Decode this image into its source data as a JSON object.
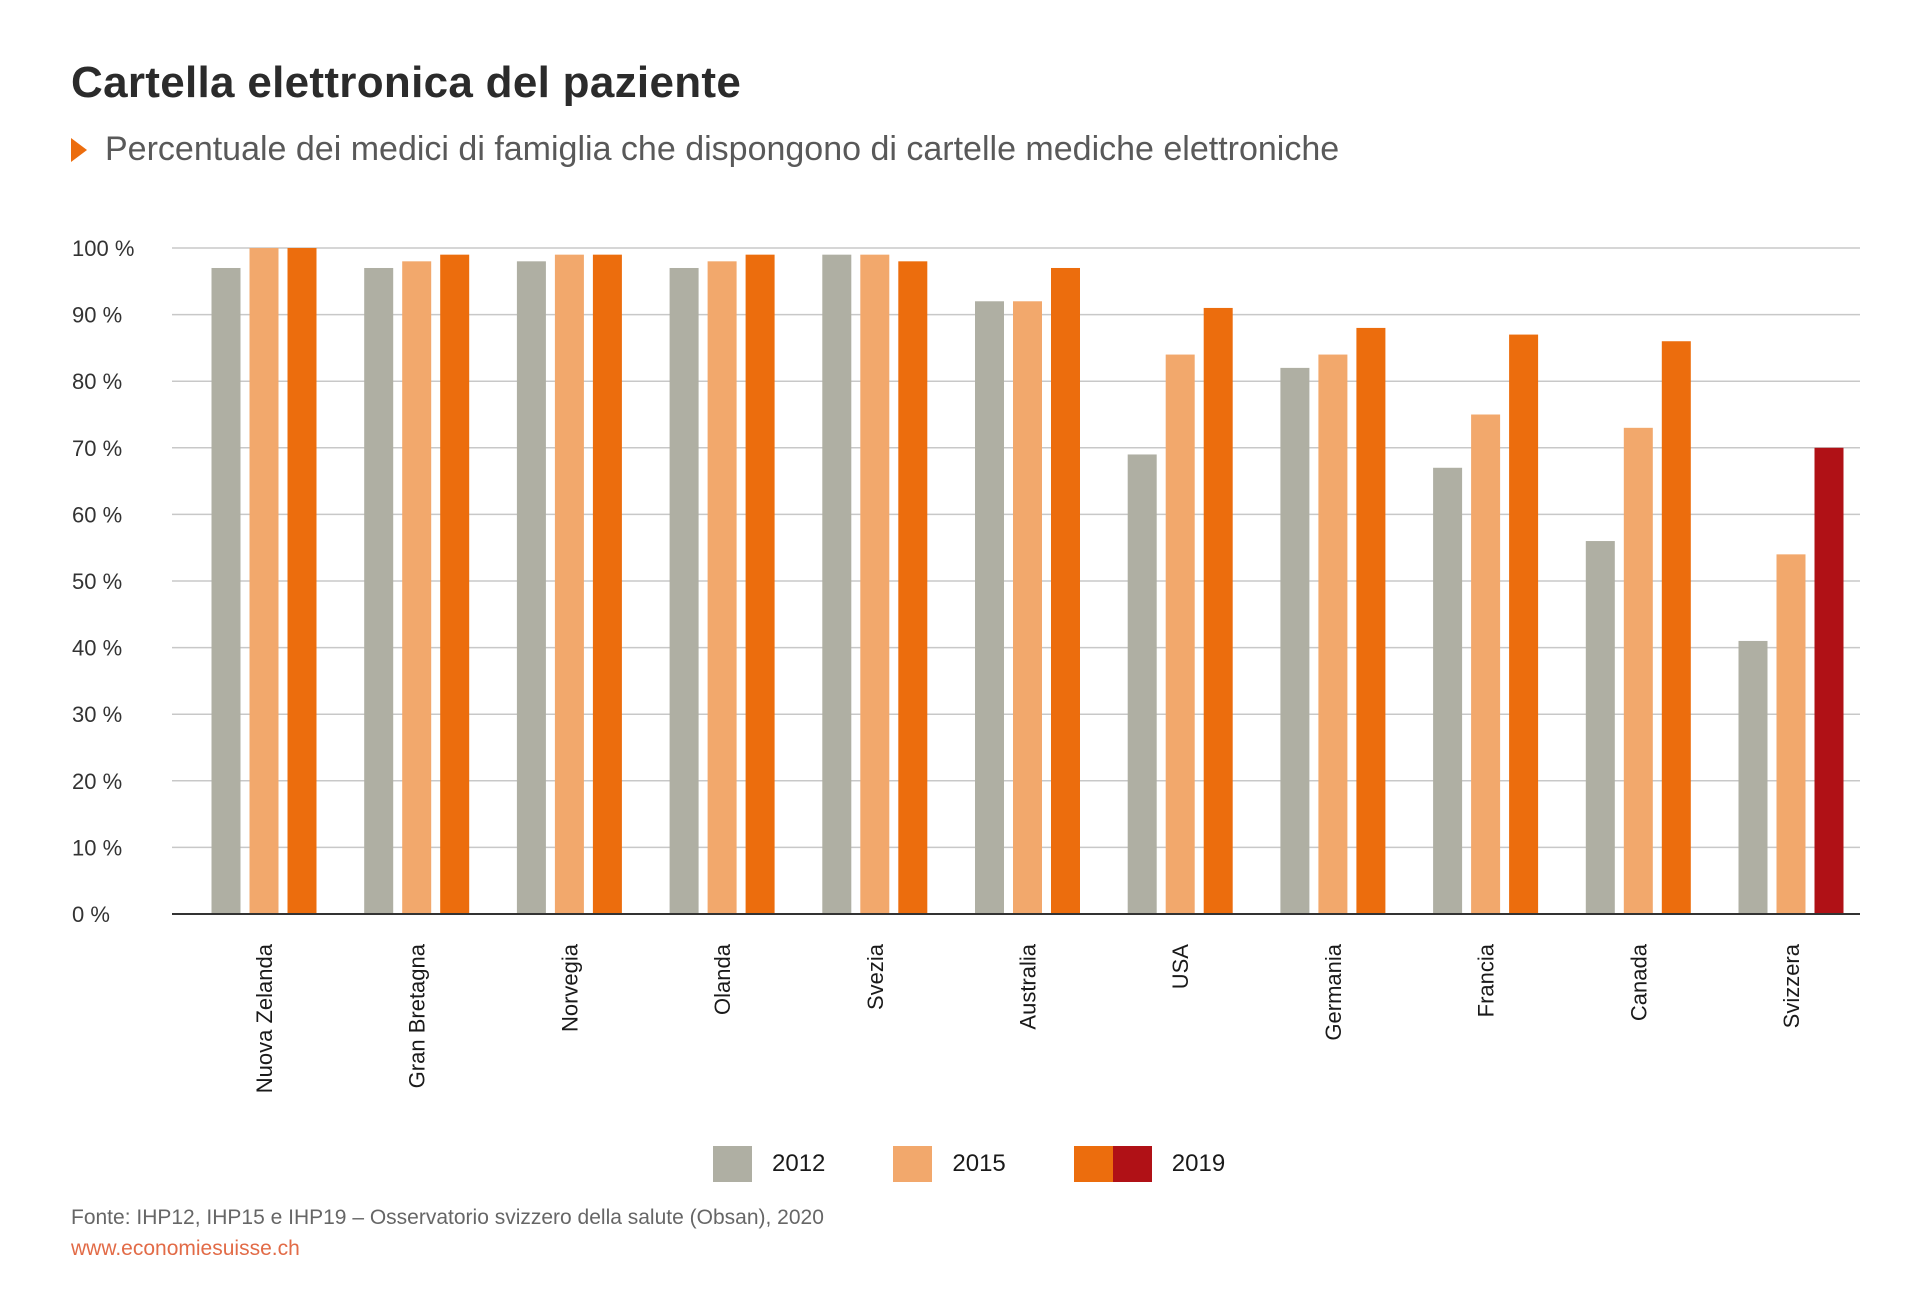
{
  "header": {
    "title": "Cartella elettronica del paziente",
    "subtitle": "Percentuale dei medici di famiglia che dispongono di cartelle mediche elettroniche"
  },
  "colors": {
    "2012": "#afafa3",
    "2015": "#f2a86c",
    "2019": "#ec6d0d",
    "highlight_2019": "#b01116",
    "grid": "#c8c8c8",
    "axis": "#333333",
    "accent": "#ec6d0d"
  },
  "chart_data": {
    "type": "bar",
    "title": "Cartella elettronica del paziente",
    "subtitle": "Percentuale dei medici di famiglia che dispongono di cartelle mediche elettroniche",
    "categories": [
      "Nuova Zelanda",
      "Gran Bretagna",
      "Norvegia",
      "Olanda",
      "Svezia",
      "Australia",
      "USA",
      "Germania",
      "Francia",
      "Canada",
      "Svizzera"
    ],
    "series": [
      {
        "name": "2012",
        "values": [
          97,
          97,
          98,
          97,
          99,
          92,
          69,
          82,
          67,
          56,
          41
        ]
      },
      {
        "name": "2015",
        "values": [
          100,
          98,
          99,
          98,
          99,
          92,
          84,
          84,
          75,
          73,
          54
        ]
      },
      {
        "name": "2019",
        "values": [
          100,
          99,
          99,
          99,
          98,
          97,
          91,
          88,
          87,
          86,
          70
        ]
      }
    ],
    "highlight": {
      "category": "Svizzera",
      "series": "2019",
      "color": "#b01116"
    },
    "ylim": [
      0,
      100
    ],
    "yticks": [
      "0 %",
      "10 %",
      "20 %",
      "30 %",
      "40 %",
      "50 %",
      "60 %",
      "70 %",
      "80 %",
      "90 %",
      "100 %"
    ],
    "xlabel": "",
    "ylabel": "",
    "grid": true,
    "legend_position": "bottom-center"
  },
  "legend": [
    {
      "label": "2012"
    },
    {
      "label": "2015"
    },
    {
      "label": "2019"
    }
  ],
  "footer": {
    "source": "Fonte: IHP12, IHP15 e IHP19 – Osservatorio svizzero della salute (Obsan), 2020",
    "website": "www.economiesuisse.ch"
  }
}
